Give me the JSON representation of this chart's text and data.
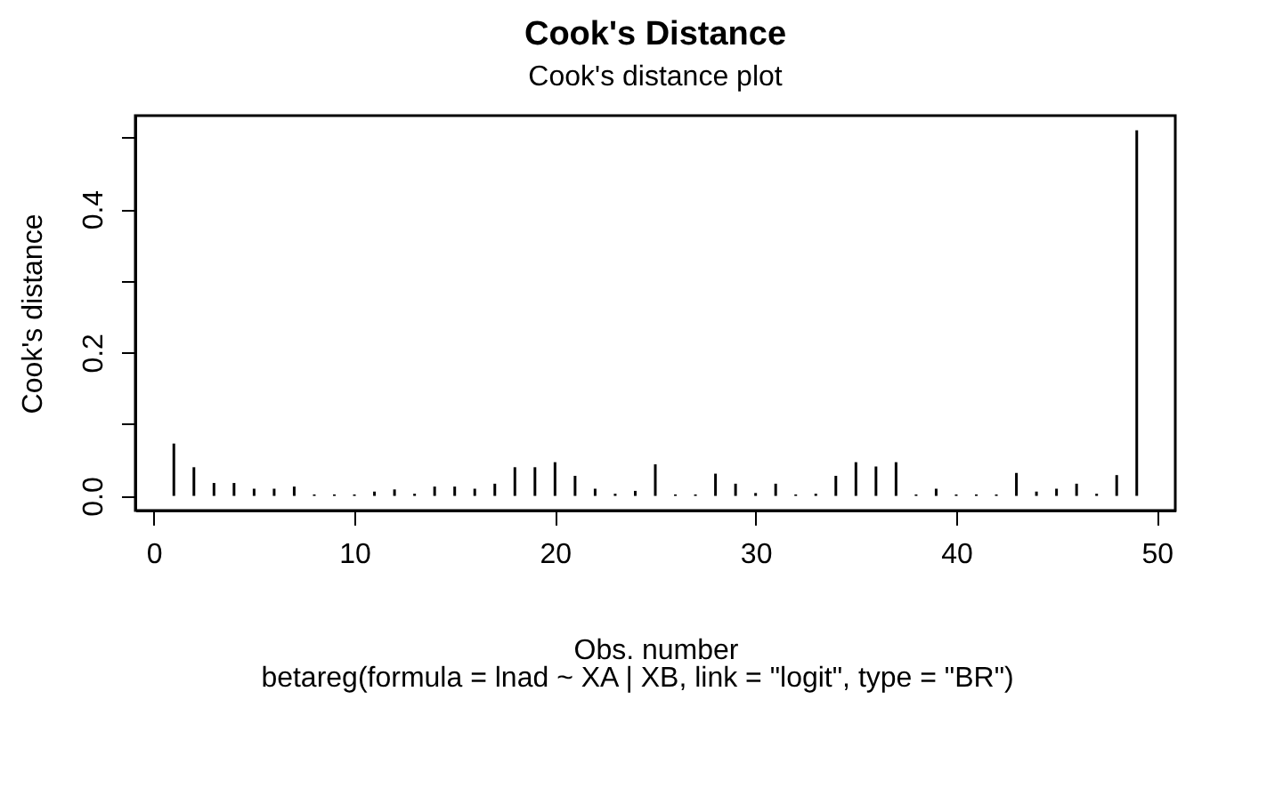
{
  "chart_data": {
    "type": "bar",
    "title": "Cook's Distance",
    "subtitle": "Cook's distance plot",
    "xlabel": "Obs. number",
    "ylabel": "Cook's distance",
    "annotations": [
      "betareg(formula = lnad ~ XA | XB, link = \"logit\", type = \"BR\")"
    ],
    "x": [
      1,
      2,
      3,
      4,
      5,
      6,
      7,
      8,
      9,
      10,
      11,
      12,
      13,
      14,
      15,
      16,
      17,
      18,
      19,
      20,
      21,
      22,
      23,
      24,
      25,
      26,
      27,
      28,
      29,
      30,
      31,
      32,
      33,
      34,
      35,
      36,
      37,
      38,
      39,
      40,
      41,
      42,
      43,
      44,
      45,
      46,
      47,
      48,
      49
    ],
    "values": [
      0.073,
      0.04,
      0.018,
      0.018,
      0.01,
      0.01,
      0.013,
      0.002,
      0.002,
      0.002,
      0.006,
      0.009,
      0.003,
      0.013,
      0.013,
      0.01,
      0.017,
      0.04,
      0.04,
      0.047,
      0.028,
      0.01,
      0.003,
      0.007,
      0.044,
      0.002,
      0.002,
      0.031,
      0.017,
      0.004,
      0.017,
      0.002,
      0.003,
      0.028,
      0.047,
      0.041,
      0.047,
      0.002,
      0.01,
      0.002,
      0.002,
      0.002,
      0.032,
      0.006,
      0.01,
      0.017,
      0.003,
      0.029,
      0.51
    ],
    "color": "#000000",
    "xlim": [
      -0.92,
      50.92
    ],
    "xticks": [
      0,
      10,
      20,
      30,
      40,
      50
    ],
    "ylim": [
      -0.0204,
      0.5304
    ],
    "yticks": [
      {
        "value": 0,
        "label": "0.0"
      },
      {
        "value": 0.1,
        "label": null
      },
      {
        "value": 0.2,
        "label": "0.2"
      },
      {
        "value": 0.3,
        "label": null
      },
      {
        "value": 0.4,
        "label": "0.4"
      },
      {
        "value": 0.5,
        "label": null
      }
    ],
    "grid": false
  }
}
